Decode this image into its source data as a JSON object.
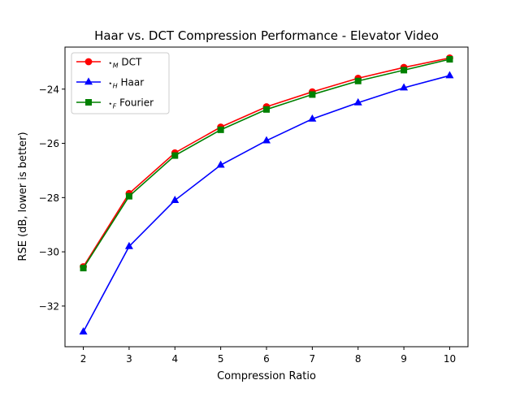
{
  "chart_data": {
    "type": "line",
    "title": "Haar vs. DCT Compression Performance - Elevator Video",
    "xlabel": "Compression Ratio",
    "ylabel": "RSE (dB, lower is better)",
    "x": [
      2,
      3,
      4,
      5,
      6,
      7,
      8,
      9,
      10
    ],
    "xlim": [
      1.6,
      10.4
    ],
    "ylim": [
      -33.5,
      -22.45
    ],
    "xticks": [
      2,
      3,
      4,
      5,
      6,
      7,
      8,
      9,
      10
    ],
    "yticks": [
      -32,
      -30,
      -28,
      -26,
      -24
    ],
    "grid": false,
    "legend_position": "upper-left",
    "series": [
      {
        "name": "DCT",
        "subscript": "M",
        "color": "#ff0000",
        "marker": "circle",
        "values": [
          -30.55,
          -27.85,
          -26.35,
          -25.4,
          -24.65,
          -24.1,
          -23.6,
          -23.2,
          -22.85
        ]
      },
      {
        "name": "Haar",
        "subscript": "H",
        "color": "#0000ff",
        "marker": "triangle",
        "values": [
          -32.95,
          -29.8,
          -28.1,
          -26.8,
          -25.9,
          -25.1,
          -24.5,
          -23.95,
          -23.5
        ]
      },
      {
        "name": "Fourier",
        "subscript": "F",
        "color": "#008000",
        "marker": "square",
        "values": [
          -30.6,
          -27.95,
          -26.45,
          -25.5,
          -24.75,
          -24.2,
          -23.7,
          -23.3,
          -22.9
        ]
      }
    ]
  }
}
